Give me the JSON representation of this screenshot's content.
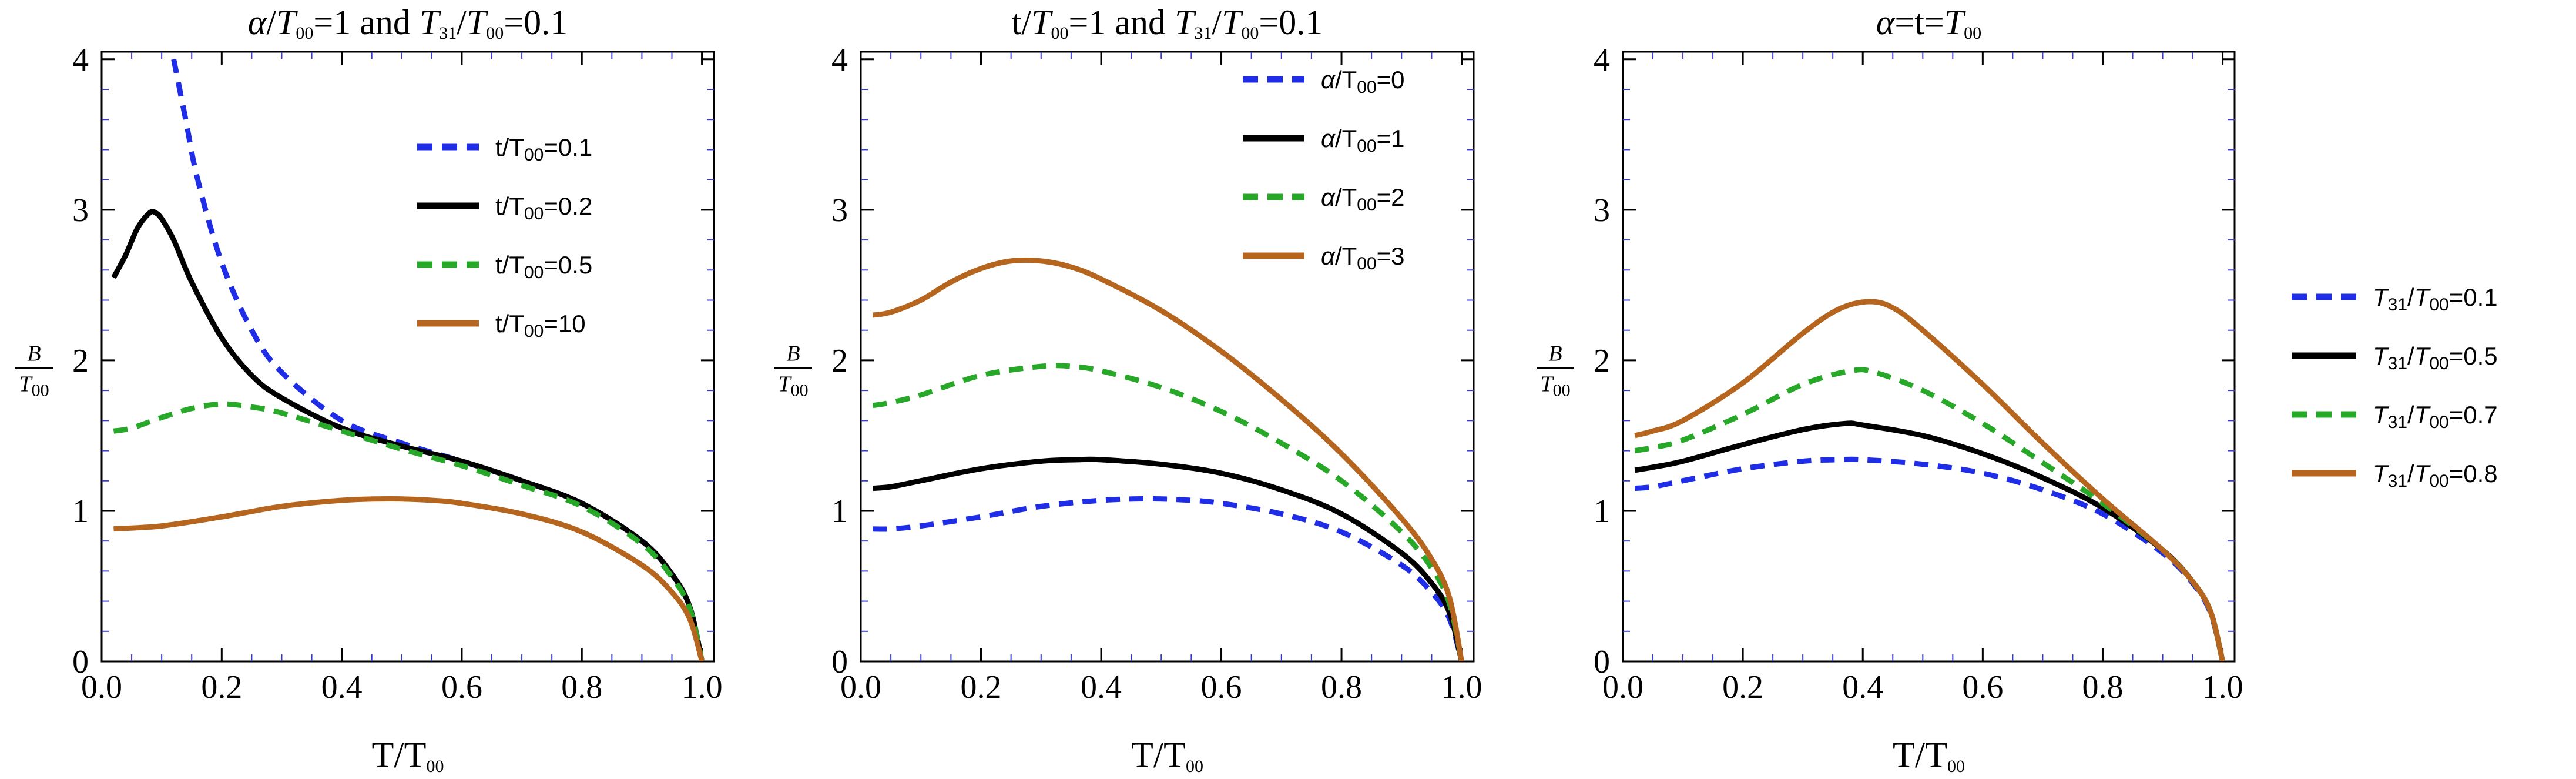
{
  "colors": {
    "blue": "#1f2ee6",
    "black": "#000000",
    "green": "#28a828",
    "orange": "#b5651d",
    "frame": "#000000",
    "minor_tick": "#3a3ad0"
  },
  "chart_data": [
    {
      "type": "line",
      "title": "α/T₀₀=1 and T₃₁/T₀₀=0.1",
      "title_parts": [
        {
          "text": "α",
          "italic": true
        },
        {
          "text": "/"
        },
        {
          "text": "T",
          "italic": true
        },
        {
          "text": "00",
          "sub": true
        },
        {
          "text": "=1 and "
        },
        {
          "text": "T",
          "italic": true
        },
        {
          "text": "31",
          "sub": true
        },
        {
          "text": "/"
        },
        {
          "text": "T",
          "italic": true
        },
        {
          "text": "00",
          "sub": true
        },
        {
          "text": "=0.1"
        }
      ],
      "xlabel": "T/T₀₀",
      "xlabel_parts": [
        {
          "text": "T/T"
        },
        {
          "text": "00",
          "sub": true
        }
      ],
      "ylabel_num": "B",
      "ylabel_den": "T₀₀",
      "xlim": [
        0,
        1.02
      ],
      "ylim": [
        0,
        4.05
      ],
      "xticks": [
        0.0,
        0.2,
        0.4,
        0.6,
        0.8,
        1.0
      ],
      "xtick_labels": [
        "0.0",
        "0.2",
        "0.4",
        "0.6",
        "0.8",
        "1.0"
      ],
      "yticks": [
        0,
        1,
        2,
        3,
        4
      ],
      "ytick_labels": [
        "0",
        "1",
        "2",
        "3",
        "4"
      ],
      "legend": {
        "position": "top-right-inside"
      },
      "series": [
        {
          "name": "t/T₀₀=0.1",
          "label_parts": [
            {
              "text": "t/T"
            },
            {
              "text": "00",
              "sub": true
            },
            {
              "text": "=0.1"
            }
          ],
          "color": "blue",
          "dash": true,
          "x": [
            0.12,
            0.14,
            0.16,
            0.2,
            0.25,
            0.3,
            0.4,
            0.5,
            0.6,
            0.7,
            0.8,
            0.9,
            0.95,
            0.98,
            1.0
          ],
          "y": [
            4.0,
            3.6,
            3.2,
            2.65,
            2.2,
            1.92,
            1.6,
            1.45,
            1.33,
            1.2,
            1.05,
            0.8,
            0.58,
            0.36,
            0.0
          ]
        },
        {
          "name": "t/T₀₀=0.2",
          "label_parts": [
            {
              "text": "t/T"
            },
            {
              "text": "00",
              "sub": true
            },
            {
              "text": "=0.2"
            }
          ],
          "color": "black",
          "dash": false,
          "x": [
            0.02,
            0.04,
            0.06,
            0.08,
            0.09,
            0.1,
            0.12,
            0.15,
            0.2,
            0.25,
            0.3,
            0.4,
            0.5,
            0.6,
            0.7,
            0.8,
            0.9,
            0.95,
            0.98,
            1.0
          ],
          "y": [
            2.55,
            2.7,
            2.88,
            2.98,
            2.98,
            2.94,
            2.8,
            2.52,
            2.15,
            1.9,
            1.75,
            1.55,
            1.43,
            1.33,
            1.2,
            1.05,
            0.8,
            0.58,
            0.36,
            0.0
          ]
        },
        {
          "name": "t/T₀₀=0.5",
          "label_parts": [
            {
              "text": "t/T"
            },
            {
              "text": "00",
              "sub": true
            },
            {
              "text": "=0.5"
            }
          ],
          "color": "green",
          "dash": true,
          "x": [
            0.02,
            0.05,
            0.1,
            0.15,
            0.2,
            0.25,
            0.3,
            0.4,
            0.5,
            0.6,
            0.7,
            0.8,
            0.9,
            0.95,
            0.98,
            1.0
          ],
          "y": [
            1.53,
            1.55,
            1.62,
            1.68,
            1.71,
            1.69,
            1.65,
            1.53,
            1.41,
            1.3,
            1.17,
            1.03,
            0.78,
            0.56,
            0.35,
            0.0
          ]
        },
        {
          "name": "t/T₀₀=10",
          "label_parts": [
            {
              "text": "t/T"
            },
            {
              "text": "00",
              "sub": true
            },
            {
              "text": "=10"
            }
          ],
          "color": "orange",
          "dash": false,
          "x": [
            0.02,
            0.1,
            0.2,
            0.3,
            0.4,
            0.48,
            0.55,
            0.6,
            0.7,
            0.8,
            0.9,
            0.95,
            0.98,
            1.0
          ],
          "y": [
            0.88,
            0.9,
            0.96,
            1.03,
            1.07,
            1.08,
            1.07,
            1.05,
            0.98,
            0.86,
            0.64,
            0.46,
            0.28,
            0.0
          ]
        }
      ]
    },
    {
      "type": "line",
      "title": "t/T₀₀=1 and T₃₁/T₀₀=0.1",
      "title_parts": [
        {
          "text": "t/"
        },
        {
          "text": "T",
          "italic": true
        },
        {
          "text": "00",
          "sub": true
        },
        {
          "text": "=1 and "
        },
        {
          "text": "T",
          "italic": true
        },
        {
          "text": "31",
          "sub": true
        },
        {
          "text": "/"
        },
        {
          "text": "T",
          "italic": true
        },
        {
          "text": "00",
          "sub": true
        },
        {
          "text": "=0.1"
        }
      ],
      "xlabel": "T/T₀₀",
      "xlabel_parts": [
        {
          "text": "T/T"
        },
        {
          "text": "00",
          "sub": true
        }
      ],
      "ylabel_num": "B",
      "ylabel_den": "T₀₀",
      "xlim": [
        0,
        1.02
      ],
      "ylim": [
        0,
        4.05
      ],
      "xticks": [
        0.0,
        0.2,
        0.4,
        0.6,
        0.8,
        1.0
      ],
      "xtick_labels": [
        "0.0",
        "0.2",
        "0.4",
        "0.6",
        "0.8",
        "1.0"
      ],
      "yticks": [
        0,
        1,
        2,
        3,
        4
      ],
      "ytick_labels": [
        "0",
        "1",
        "2",
        "3",
        "4"
      ],
      "legend": {
        "position": "top-right-inside"
      },
      "series": [
        {
          "name": "α/T₀₀=0",
          "label_parts": [
            {
              "text": "α",
              "italic": true
            },
            {
              "text": "/T"
            },
            {
              "text": "00",
              "sub": true
            },
            {
              "text": "=0"
            }
          ],
          "color": "blue",
          "dash": true,
          "x": [
            0.02,
            0.05,
            0.1,
            0.2,
            0.3,
            0.4,
            0.48,
            0.55,
            0.6,
            0.7,
            0.8,
            0.9,
            0.95,
            0.98,
            1.0
          ],
          "y": [
            0.88,
            0.88,
            0.9,
            0.96,
            1.03,
            1.07,
            1.08,
            1.07,
            1.05,
            0.98,
            0.86,
            0.64,
            0.46,
            0.28,
            0.0
          ]
        },
        {
          "name": "α/T₀₀=1",
          "label_parts": [
            {
              "text": "α",
              "italic": true
            },
            {
              "text": "/T"
            },
            {
              "text": "00",
              "sub": true
            },
            {
              "text": "=1"
            }
          ],
          "color": "black",
          "dash": false,
          "x": [
            0.02,
            0.05,
            0.1,
            0.2,
            0.3,
            0.36,
            0.4,
            0.5,
            0.6,
            0.7,
            0.8,
            0.9,
            0.95,
            0.98,
            1.0
          ],
          "y": [
            1.15,
            1.16,
            1.2,
            1.28,
            1.33,
            1.34,
            1.34,
            1.31,
            1.25,
            1.14,
            0.98,
            0.72,
            0.52,
            0.32,
            0.0
          ]
        },
        {
          "name": "α/T₀₀=2",
          "label_parts": [
            {
              "text": "α",
              "italic": true
            },
            {
              "text": "/T"
            },
            {
              "text": "00",
              "sub": true
            },
            {
              "text": "=2"
            }
          ],
          "color": "green",
          "dash": true,
          "x": [
            0.02,
            0.05,
            0.1,
            0.2,
            0.3,
            0.35,
            0.4,
            0.5,
            0.6,
            0.7,
            0.8,
            0.9,
            0.95,
            0.98,
            1.0
          ],
          "y": [
            1.7,
            1.72,
            1.77,
            1.9,
            1.96,
            1.96,
            1.93,
            1.82,
            1.66,
            1.45,
            1.2,
            0.86,
            0.62,
            0.38,
            0.0
          ]
        },
        {
          "name": "α/T₀₀=3",
          "label_parts": [
            {
              "text": "α",
              "italic": true
            },
            {
              "text": "/T"
            },
            {
              "text": "00",
              "sub": true
            },
            {
              "text": "=3"
            }
          ],
          "color": "orange",
          "dash": false,
          "x": [
            0.02,
            0.05,
            0.1,
            0.15,
            0.2,
            0.25,
            0.3,
            0.35,
            0.4,
            0.5,
            0.6,
            0.7,
            0.8,
            0.9,
            0.95,
            0.98,
            1.0
          ],
          "y": [
            2.3,
            2.32,
            2.4,
            2.52,
            2.61,
            2.66,
            2.66,
            2.62,
            2.54,
            2.33,
            2.06,
            1.74,
            1.38,
            0.95,
            0.68,
            0.42,
            0.0
          ]
        }
      ]
    },
    {
      "type": "line",
      "title": "α=t=T₀₀",
      "title_parts": [
        {
          "text": "α",
          "italic": true
        },
        {
          "text": "=t="
        },
        {
          "text": "T",
          "italic": true
        },
        {
          "text": "00",
          "sub": true
        }
      ],
      "xlabel": "T/T₀₀",
      "xlabel_parts": [
        {
          "text": "T/T"
        },
        {
          "text": "00",
          "sub": true
        }
      ],
      "ylabel_num": "B",
      "ylabel_den": "T₀₀",
      "xlim": [
        0,
        1.02
      ],
      "ylim": [
        0,
        4.05
      ],
      "xticks": [
        0.0,
        0.2,
        0.4,
        0.6,
        0.8,
        1.0
      ],
      "xtick_labels": [
        "0.0",
        "0.2",
        "0.4",
        "0.6",
        "0.8",
        "1.0"
      ],
      "yticks": [
        0,
        1,
        2,
        3,
        4
      ],
      "ytick_labels": [
        "0",
        "1",
        "2",
        "3",
        "4"
      ],
      "legend": {
        "position": "right-outside"
      },
      "series": [
        {
          "name": "T₃₁/T₀₀=0.1",
          "label_parts": [
            {
              "text": "T",
              "italic": true
            },
            {
              "text": "31",
              "sub": true
            },
            {
              "text": "/"
            },
            {
              "text": "T",
              "italic": true
            },
            {
              "text": "00",
              "sub": true
            },
            {
              "text": "=0.1"
            }
          ],
          "color": "blue",
          "dash": true,
          "x": [
            0.02,
            0.05,
            0.1,
            0.2,
            0.3,
            0.36,
            0.4,
            0.5,
            0.6,
            0.7,
            0.8,
            0.9,
            0.95,
            0.98,
            1.0
          ],
          "y": [
            1.15,
            1.16,
            1.2,
            1.28,
            1.33,
            1.34,
            1.34,
            1.31,
            1.25,
            1.14,
            0.98,
            0.72,
            0.52,
            0.32,
            0.0
          ]
        },
        {
          "name": "T₃₁/T₀₀=0.5",
          "label_parts": [
            {
              "text": "T",
              "italic": true
            },
            {
              "text": "31",
              "sub": true
            },
            {
              "text": "/"
            },
            {
              "text": "T",
              "italic": true
            },
            {
              "text": "00",
              "sub": true
            },
            {
              "text": "=0.5"
            }
          ],
          "color": "black",
          "dash": false,
          "x": [
            0.02,
            0.05,
            0.1,
            0.2,
            0.3,
            0.37,
            0.4,
            0.5,
            0.6,
            0.7,
            0.8,
            0.9,
            0.95,
            0.98,
            1.0
          ],
          "y": [
            1.27,
            1.29,
            1.33,
            1.44,
            1.54,
            1.58,
            1.57,
            1.5,
            1.38,
            1.22,
            1.02,
            0.74,
            0.53,
            0.33,
            0.0
          ]
        },
        {
          "name": "T₃₁/T₀₀=0.7",
          "label_parts": [
            {
              "text": "T",
              "italic": true
            },
            {
              "text": "31",
              "sub": true
            },
            {
              "text": "/"
            },
            {
              "text": "T",
              "italic": true
            },
            {
              "text": "00",
              "sub": true
            },
            {
              "text": "=0.7"
            }
          ],
          "color": "green",
          "dash": true,
          "x": [
            0.02,
            0.05,
            0.1,
            0.2,
            0.3,
            0.38,
            0.42,
            0.5,
            0.6,
            0.7,
            0.8,
            0.9,
            0.95,
            0.98,
            1.0
          ],
          "y": [
            1.4,
            1.42,
            1.47,
            1.64,
            1.84,
            1.93,
            1.92,
            1.8,
            1.58,
            1.32,
            1.05,
            0.74,
            0.53,
            0.33,
            0.0
          ]
        },
        {
          "name": "T₃₁/T₀₀=0.8",
          "label_parts": [
            {
              "text": "T",
              "italic": true
            },
            {
              "text": "31",
              "sub": true
            },
            {
              "text": "/"
            },
            {
              "text": "T",
              "italic": true
            },
            {
              "text": "00",
              "sub": true
            },
            {
              "text": "=0.8"
            }
          ],
          "color": "orange",
          "dash": false,
          "x": [
            0.02,
            0.05,
            0.1,
            0.2,
            0.3,
            0.36,
            0.41,
            0.45,
            0.5,
            0.6,
            0.7,
            0.8,
            0.9,
            0.95,
            0.98,
            1.0
          ],
          "y": [
            1.5,
            1.53,
            1.6,
            1.85,
            2.18,
            2.34,
            2.39,
            2.35,
            2.2,
            1.84,
            1.45,
            1.08,
            0.74,
            0.53,
            0.33,
            0.0
          ]
        }
      ]
    }
  ]
}
